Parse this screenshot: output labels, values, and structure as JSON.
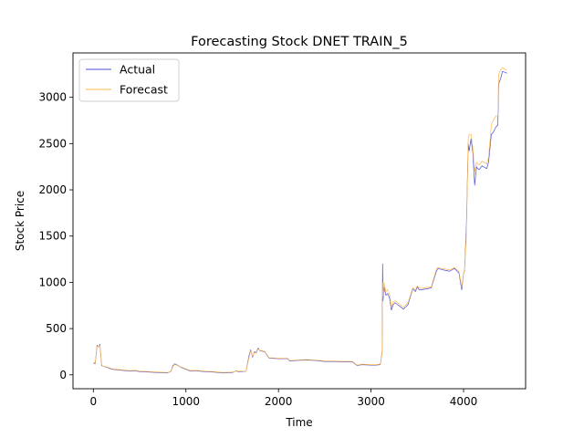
{
  "chart_data": {
    "type": "line",
    "title": "Forecasting Stock DNET TRAIN_5",
    "xlabel": "Time",
    "ylabel": "Stock Price",
    "xlim": [
      -220,
      4670
    ],
    "ylim": [
      -150,
      3480
    ],
    "xticks": [
      0,
      1000,
      2000,
      3000,
      4000
    ],
    "yticks": [
      0,
      500,
      1000,
      1500,
      2000,
      2500,
      3000
    ],
    "grid": false,
    "legend_position": "upper-left",
    "series": [
      {
        "name": "Actual",
        "color": "#4d4dd9",
        "x": [
          0,
          20,
          40,
          55,
          70,
          80,
          90,
          100,
          150,
          200,
          300,
          400,
          450,
          500,
          600,
          700,
          800,
          840,
          860,
          880,
          900,
          950,
          1000,
          1050,
          1100,
          1200,
          1300,
          1400,
          1500,
          1550,
          1560,
          1600,
          1650,
          1680,
          1700,
          1720,
          1740,
          1760,
          1780,
          1800,
          1850,
          1900,
          2000,
          2100,
          2120,
          2200,
          2300,
          2400,
          2450,
          2500,
          2600,
          2700,
          2800,
          2850,
          2900,
          3000,
          3050,
          3100,
          3120,
          3125,
          3130,
          3140,
          3160,
          3180,
          3200,
          3220,
          3240,
          3260,
          3300,
          3350,
          3400,
          3450,
          3480,
          3500,
          3520,
          3550,
          3600,
          3650,
          3700,
          3720,
          3760,
          3800,
          3850,
          3900,
          3950,
          3980,
          4000,
          4010,
          4030,
          4050,
          4060,
          4080,
          4100,
          4120,
          4140,
          4150,
          4170,
          4200,
          4230,
          4250,
          4270,
          4300,
          4320,
          4350,
          4370,
          4380,
          4400,
          4420,
          4450,
          4470
        ],
        "y": [
          130,
          120,
          320,
          300,
          330,
          210,
          100,
          95,
          80,
          60,
          50,
          40,
          45,
          35,
          30,
          25,
          20,
          40,
          100,
          120,
          110,
          80,
          60,
          40,
          45,
          35,
          30,
          20,
          25,
          45,
          35,
          35,
          40,
          200,
          270,
          190,
          250,
          240,
          290,
          260,
          250,
          180,
          175,
          175,
          150,
          155,
          160,
          155,
          150,
          145,
          145,
          140,
          140,
          100,
          110,
          105,
          105,
          110,
          250,
          1200,
          800,
          950,
          860,
          880,
          830,
          700,
          760,
          780,
          750,
          710,
          760,
          930,
          900,
          950,
          920,
          920,
          930,
          940,
          1100,
          1150,
          1140,
          1130,
          1120,
          1150,
          1100,
          920,
          1100,
          1120,
          1600,
          2500,
          2420,
          2550,
          2400,
          2050,
          2250,
          2230,
          2220,
          2260,
          2240,
          2230,
          2300,
          2600,
          2620,
          2680,
          2700,
          3150,
          3200,
          3280,
          3270,
          3260
        ],
        "linewidth": 0.7
      },
      {
        "name": "Forecast",
        "color": "#ffb84d",
        "x": [
          0,
          20,
          40,
          55,
          70,
          80,
          90,
          100,
          150,
          200,
          300,
          400,
          450,
          500,
          600,
          700,
          800,
          840,
          860,
          880,
          900,
          950,
          1000,
          1050,
          1100,
          1200,
          1300,
          1400,
          1500,
          1550,
          1560,
          1600,
          1650,
          1680,
          1700,
          1720,
          1740,
          1760,
          1780,
          1800,
          1850,
          1900,
          2000,
          2100,
          2120,
          2200,
          2300,
          2400,
          2450,
          2500,
          2600,
          2700,
          2800,
          2850,
          2900,
          3000,
          3050,
          3100,
          3120,
          3125,
          3130,
          3140,
          3160,
          3180,
          3200,
          3220,
          3240,
          3260,
          3300,
          3350,
          3400,
          3450,
          3480,
          3500,
          3520,
          3550,
          3600,
          3650,
          3700,
          3720,
          3760,
          3800,
          3850,
          3900,
          3950,
          3980,
          4000,
          4010,
          4030,
          4050,
          4060,
          4080,
          4100,
          4120,
          4140,
          4150,
          4170,
          4200,
          4230,
          4250,
          4270,
          4300,
          4320,
          4350,
          4370,
          4380,
          4400,
          4420,
          4450,
          4470
        ],
        "y": [
          135,
          125,
          310,
          305,
          320,
          220,
          110,
          95,
          85,
          65,
          55,
          45,
          50,
          40,
          35,
          30,
          25,
          35,
          90,
          115,
          105,
          85,
          65,
          45,
          50,
          40,
          35,
          25,
          30,
          40,
          40,
          40,
          40,
          180,
          260,
          200,
          240,
          235,
          280,
          265,
          255,
          185,
          180,
          180,
          155,
          160,
          165,
          160,
          155,
          150,
          150,
          145,
          145,
          105,
          115,
          110,
          110,
          115,
          240,
          1000,
          850,
          1000,
          900,
          920,
          870,
          730,
          790,
          800,
          770,
          730,
          780,
          940,
          920,
          960,
          940,
          935,
          945,
          950,
          1120,
          1160,
          1150,
          1145,
          1135,
          1160,
          1120,
          950,
          1100,
          1130,
          1500,
          2550,
          2600,
          2600,
          2450,
          2200,
          2300,
          2280,
          2270,
          2310,
          2290,
          2280,
          2350,
          2700,
          2750,
          2800,
          2800,
          3250,
          3300,
          3320,
          3300,
          3290
        ],
        "linewidth": 0.7
      }
    ]
  }
}
